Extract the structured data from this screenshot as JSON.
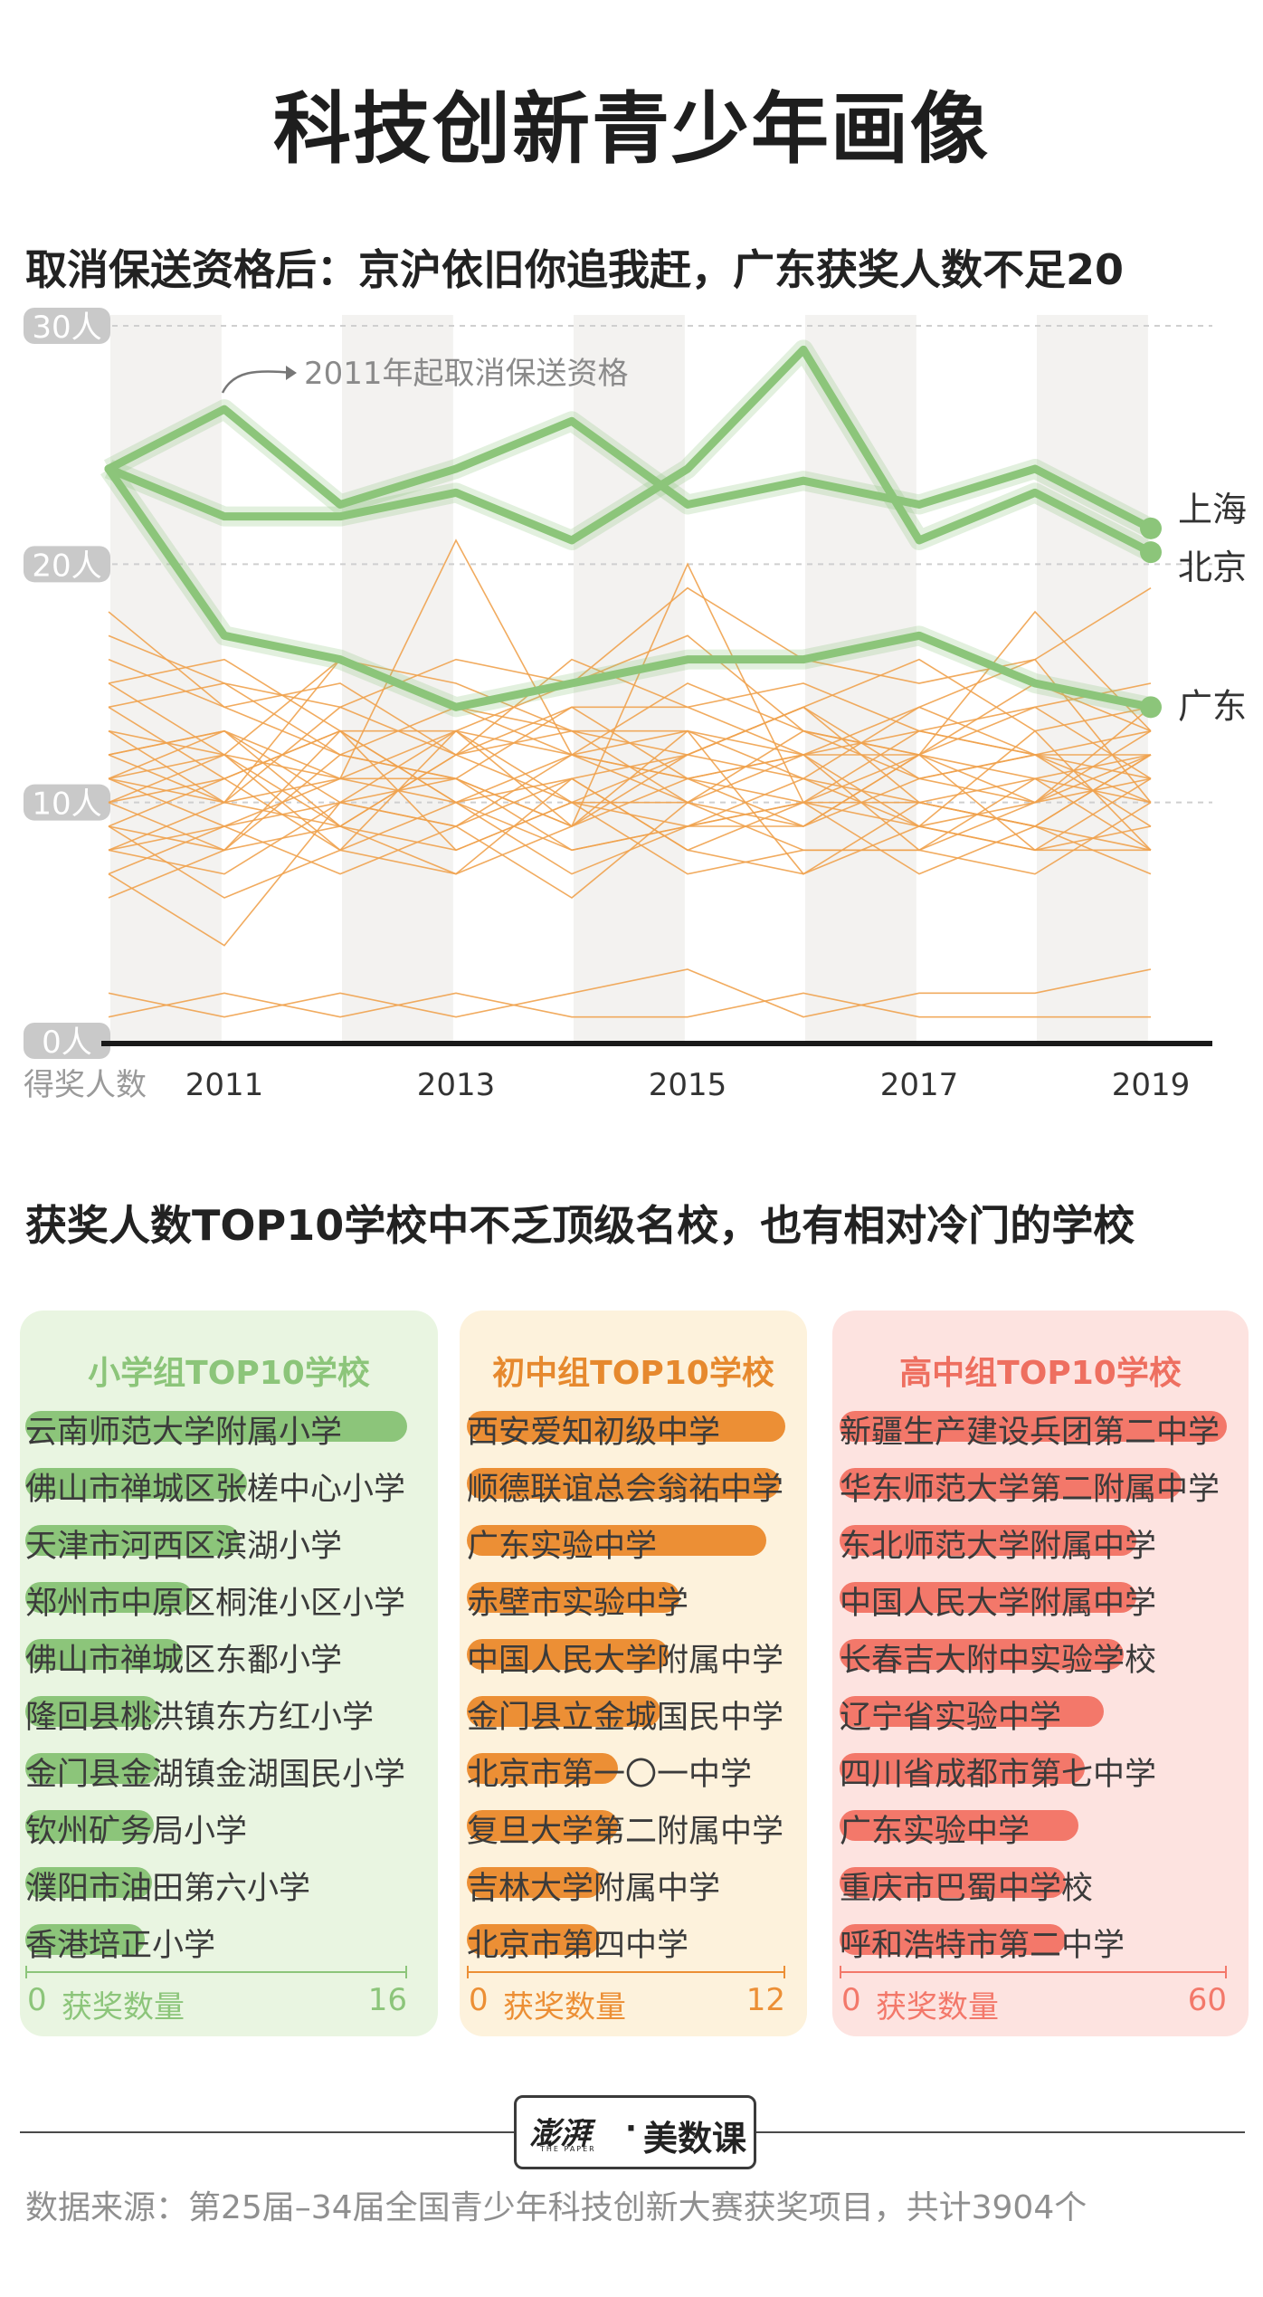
{
  "title": "科技创新青少年画像",
  "section1_title": "取消保送资格后：京沪依旧你追我赶，广东获奖人数不足20",
  "section2_title": "获奖人数TOP10学校中不乏顶级名校，也有相对冷门的学校",
  "chart_data": [
    {
      "type": "line",
      "x": [
        2010,
        2011,
        2012,
        2013,
        2014,
        2015,
        2016,
        2017,
        2018,
        2019
      ],
      "xticks": [
        "2011",
        "2013",
        "2015",
        "2017",
        "2019"
      ],
      "xlabel": "得奖人数",
      "yticks": [
        "0人",
        "10人",
        "20人",
        "30人"
      ],
      "ylim": [
        0,
        30
      ],
      "annotation": "2011年起取消保送资格",
      "colors": {
        "highlight": "#8cc57a",
        "other": "#f0a24e"
      },
      "highlight_series": [
        {
          "name": "上海",
          "values": [
            24,
            26.5,
            22.5,
            24,
            26,
            22.5,
            23.5,
            22.5,
            24,
            21.5
          ]
        },
        {
          "name": "北京",
          "values": [
            24,
            22,
            22,
            23,
            21,
            24,
            29,
            21,
            23,
            20.5
          ]
        },
        {
          "name": "广东",
          "values": [
            24,
            17,
            16,
            14,
            15,
            16,
            16,
            17,
            15,
            14
          ]
        }
      ],
      "other_series": [
        [
          11,
          10,
          16,
          14,
          12,
          11,
          12,
          9,
          10,
          14
        ],
        [
          7,
          4,
          10,
          13,
          10,
          7,
          8,
          8,
          10,
          11
        ],
        [
          11,
          12,
          9,
          8,
          10,
          9,
          10,
          12,
          8,
          8
        ],
        [
          8,
          9,
          11,
          10,
          7,
          9,
          9,
          11,
          12,
          13
        ],
        [
          12,
          13,
          10,
          9,
          12,
          13,
          11,
          9,
          8,
          11
        ],
        [
          9,
          8,
          12,
          11,
          9,
          13,
          7,
          10,
          11,
          10
        ],
        [
          14,
          11,
          13,
          10,
          11,
          12,
          14,
          10,
          9,
          12
        ],
        [
          10,
          12,
          8,
          13,
          9,
          20,
          10,
          9,
          13,
          8
        ],
        [
          18,
          14,
          12,
          11,
          14,
          14,
          12,
          13,
          12,
          10
        ],
        [
          6,
          8,
          9,
          7,
          11,
          8,
          7,
          9,
          8,
          9
        ],
        [
          13,
          10,
          14,
          12,
          10,
          10,
          12,
          12,
          14,
          11
        ],
        [
          9,
          6,
          8,
          10,
          8,
          9,
          10,
          7,
          9,
          8
        ],
        [
          12,
          13,
          11,
          21,
          12,
          11,
          9,
          12,
          11,
          12
        ],
        [
          10,
          11,
          13,
          8,
          10,
          12,
          11,
          14,
          16,
          10
        ],
        [
          8,
          10,
          9,
          12,
          13,
          10,
          13,
          11,
          10,
          13
        ],
        [
          15,
          12,
          11,
          13,
          12,
          15,
          13,
          12,
          18,
          13
        ],
        [
          11,
          9,
          10,
          9,
          11,
          8,
          10,
          10,
          9,
          7
        ],
        [
          14,
          15,
          12,
          14,
          13,
          13,
          12,
          14,
          12,
          12
        ],
        [
          7,
          9,
          7,
          9,
          6,
          10,
          8,
          8,
          7,
          10
        ],
        [
          16,
          14,
          15,
          12,
          16,
          14,
          15,
          13,
          14,
          15
        ],
        [
          12,
          10,
          11,
          11,
          9,
          12,
          14,
          11,
          12,
          9
        ],
        [
          10,
          8,
          13,
          10,
          12,
          10,
          9,
          12,
          10,
          12
        ],
        [
          17,
          15,
          14,
          16,
          15,
          19,
          16,
          15,
          16,
          19
        ],
        [
          9,
          11,
          8,
          7,
          9,
          11,
          12,
          8,
          11,
          8
        ],
        [
          13,
          12,
          16,
          15,
          13,
          12,
          14,
          16,
          13,
          14
        ],
        [
          2,
          1,
          2,
          1,
          2,
          3,
          1,
          2,
          2,
          3
        ],
        [
          1,
          2,
          1,
          2,
          1,
          1,
          2,
          1,
          1,
          1
        ],
        [
          11,
          13,
          9,
          12,
          14,
          11,
          10,
          13,
          12,
          11
        ],
        [
          8,
          7,
          10,
          11,
          8,
          9,
          11,
          10,
          9,
          12
        ],
        [
          15,
          16,
          13,
          13,
          15,
          17,
          13,
          12,
          15,
          13
        ]
      ],
      "line_labels": [
        "上海",
        "北京",
        "广东"
      ]
    },
    {
      "type": "bar",
      "title": "小学组TOP10学校",
      "xlabel": "获奖数量",
      "xlim": [
        0,
        16
      ],
      "axis_min_label": "0",
      "axis_max_label": "16",
      "color": "#8cc57a",
      "categories": [
        "云南师范大学附属小学",
        "佛山市禅城区张槎中心小学",
        "天津市河西区滨湖小学",
        "郑州市中原区桐淮小区小学",
        "佛山市禅城区东鄱小学",
        "隆回县桃洪镇东方红小学",
        "金门县金湖镇金湖国民小学",
        "钦州矿务局小学",
        "濮阳市油田第六小学",
        "香港培正小学"
      ],
      "values": [
        16,
        9.3,
        9.0,
        7.0,
        6.6,
        5.6,
        5.6,
        5.4,
        5.3,
        5.0
      ]
    },
    {
      "type": "bar",
      "title": "初中组TOP10学校",
      "xlabel": "获奖数量",
      "xlim": [
        0,
        12
      ],
      "axis_min_label": "0",
      "axis_max_label": "12",
      "color": "#ec8f35",
      "categories": [
        "西安爱知初级中学",
        "顺德联谊总会翁祐中学",
        "广东实验中学",
        "赤壁市实验中学",
        "中国人民大学附属中学",
        "金门县立金城国民中学",
        "北京市第一〇一中学",
        "复旦大学第二附属中学",
        "吉林大学附属中学",
        "北京市第四中学"
      ],
      "values": [
        12,
        11.8,
        11.3,
        8.0,
        7.6,
        7.3,
        5.7,
        5.7,
        5.1,
        5.0
      ]
    },
    {
      "type": "bar",
      "title": "高中组TOP10学校",
      "xlabel": "获奖数量",
      "xlim": [
        0,
        60
      ],
      "axis_min_label": "0",
      "axis_max_label": "60",
      "color": "#f3786a",
      "categories": [
        "新疆生产建设兵团第二中学",
        "华东师范大学第二附属中学",
        "东北师范大学附属中学",
        "中国人民大学附属中学",
        "长春吉大附中实验学校",
        "辽宁省实验中学",
        "四川省成都市第七中学",
        "广东实验中学",
        "重庆市巴蜀中学校",
        "呼和浩特市第二中学"
      ],
      "values": [
        60,
        53,
        46,
        46,
        44,
        41,
        38,
        37,
        35,
        35
      ]
    }
  ],
  "panels": [
    {
      "colors": {
        "bg": "#e9f5e1",
        "accent": "#8cc57a",
        "text": "#8cc57a"
      }
    },
    {
      "colors": {
        "bg": "#fdf2dc",
        "accent": "#ec8f35",
        "text": "#e6892e"
      }
    },
    {
      "colors": {
        "bg": "#fde3e0",
        "accent": "#f3786a",
        "text": "#ee6f60"
      }
    }
  ],
  "logo": {
    "brand": "澎湃",
    "brand_sub": "THE PAPER",
    "separator": "·",
    "column": "美数课"
  },
  "source": "数据来源：第25届–34届全国青少年科技创新大赛获奖项目，共计3904个"
}
